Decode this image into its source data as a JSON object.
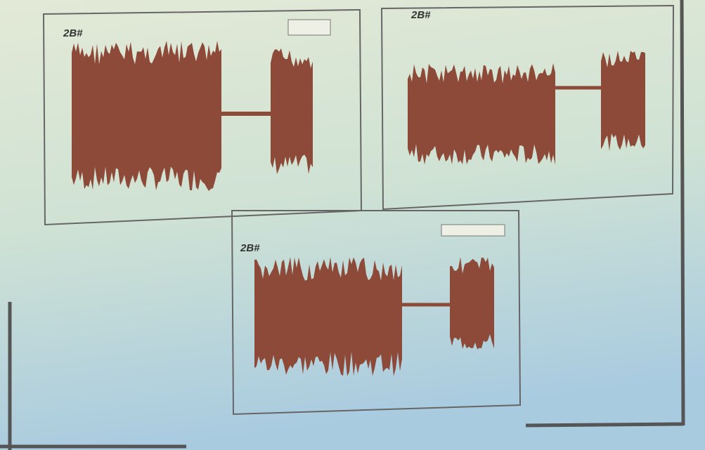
{
  "panels": [
    {
      "label": "2B#"
    },
    {
      "label": "2B#"
    },
    {
      "label": "2B#"
    }
  ]
}
